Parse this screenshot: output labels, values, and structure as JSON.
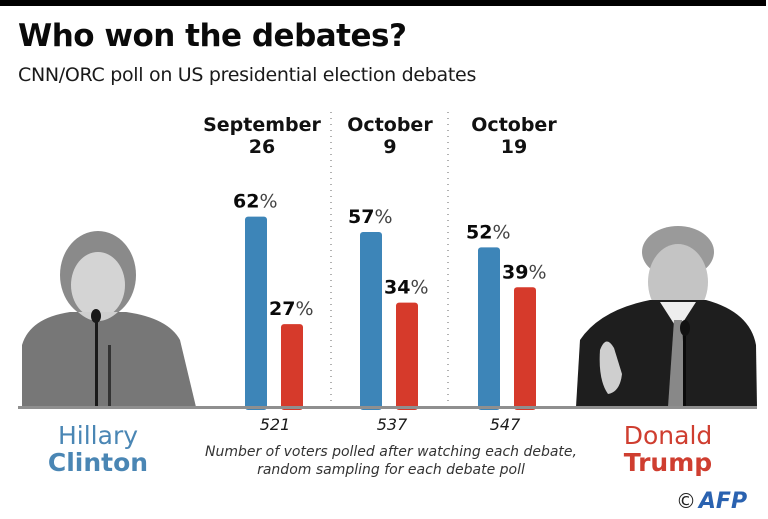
{
  "header": {
    "title": "Who won the debates?",
    "subtitle": "CNN/ORC poll on US presidential election debates"
  },
  "candidates": {
    "clinton": {
      "first": "Hillary",
      "last": "Clinton",
      "color": "#3d85b8",
      "text_color": "#4a86b4"
    },
    "trump": {
      "first": "Donald",
      "last": "Trump",
      "color": "#d63a2b",
      "text_color": "#cf3e30"
    }
  },
  "footer": {
    "note_line1": "Number of voters polled after watching each debate,",
    "note_line2": "random sampling for each debate poll",
    "copyright": "©",
    "agency": "AFP",
    "agency_color": "#2a62b0"
  },
  "chart_data": {
    "type": "bar",
    "title": "Who won the debates?",
    "subtitle": "CNN/ORC poll on US presidential election debates",
    "categories": [
      {
        "line1": "September",
        "line2": "26"
      },
      {
        "line1": "October",
        "line2": "9"
      },
      {
        "line1": "October",
        "line2": "19"
      }
    ],
    "series": [
      {
        "name": "Hillary Clinton",
        "color": "#3d85b8",
        "values": [
          62,
          57,
          52
        ]
      },
      {
        "name": "Donald Trump",
        "color": "#d63a2b",
        "values": [
          27,
          34,
          39
        ]
      }
    ],
    "value_suffix": "%",
    "sample_sizes": [
      "521",
      "537",
      "547"
    ],
    "sample_label": "Number of voters polled after watching each debate, random sampling for each debate poll",
    "ylim": [
      0,
      100
    ],
    "grid": false,
    "legend": "photo labels left (Clinton) and right (Trump)"
  }
}
